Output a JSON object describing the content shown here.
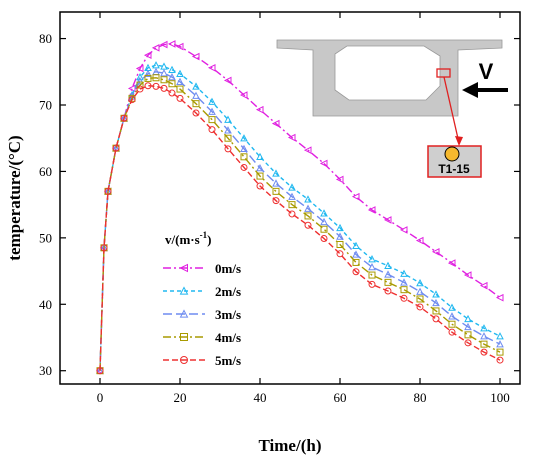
{
  "chart_data": {
    "type": "line",
    "xlabel": "Time/(h)",
    "ylabel": "temperature/(°C)",
    "xlim": [
      -10,
      105
    ],
    "ylim": [
      28,
      84
    ],
    "xticks": [
      0,
      20,
      40,
      60,
      80,
      100
    ],
    "yticks": [
      30,
      40,
      50,
      60,
      70,
      80
    ],
    "grid": false,
    "legend_title_parts": {
      "prefix": "v/(m·s",
      "sup": "-1",
      "suffix": ")"
    },
    "legend_placement": "center-left",
    "series": [
      {
        "name": "0m/s",
        "color": "#e020e0",
        "dash": "8,3,2,3",
        "marker": "triangle-left",
        "x": [
          0,
          1,
          2,
          4,
          6,
          8,
          10,
          12,
          14,
          16,
          18,
          20,
          24,
          28,
          32,
          36,
          40,
          44,
          48,
          52,
          56,
          60,
          64,
          68,
          72,
          76,
          80,
          84,
          88,
          92,
          96,
          100
        ],
        "y": [
          30,
          48.5,
          57,
          63.5,
          68,
          72.5,
          75.5,
          77.5,
          78.6,
          79.1,
          79.2,
          78.8,
          77.3,
          75.6,
          73.7,
          71.5,
          69.3,
          67.2,
          65.1,
          63.2,
          61.2,
          58.8,
          56.2,
          54.2,
          52.7,
          51.2,
          49.6,
          47.9,
          46.2,
          44.4,
          42.8,
          41
        ]
      },
      {
        "name": "2m/s",
        "color": "#20b8f0",
        "dash": "4,3",
        "marker": "triangle-up",
        "x": [
          0,
          1,
          2,
          4,
          6,
          8,
          10,
          12,
          14,
          16,
          18,
          20,
          24,
          28,
          32,
          36,
          40,
          44,
          48,
          52,
          56,
          60,
          64,
          68,
          72,
          76,
          80,
          84,
          88,
          92,
          96,
          100
        ],
        "y": [
          30,
          48.5,
          57,
          63.5,
          68,
          71.5,
          74.2,
          75.6,
          76,
          75.8,
          75.3,
          74.7,
          72.8,
          70.5,
          67.8,
          65,
          62.2,
          59.7,
          57.6,
          55.8,
          53.7,
          51.5,
          48.8,
          46.8,
          45.8,
          44.6,
          43.2,
          41.5,
          39.5,
          37.8,
          36.4,
          35.2
        ]
      },
      {
        "name": "3m/s",
        "color": "#6f8cf0",
        "dash": "9,4",
        "marker": "triangle-up",
        "x": [
          0,
          1,
          2,
          4,
          6,
          8,
          10,
          12,
          14,
          16,
          18,
          20,
          24,
          28,
          32,
          36,
          40,
          44,
          48,
          52,
          56,
          60,
          64,
          68,
          72,
          76,
          80,
          84,
          88,
          92,
          96,
          100
        ],
        "y": [
          30,
          48.5,
          57,
          63.5,
          68,
          71.3,
          73.6,
          74.7,
          75,
          74.8,
          74.2,
          73.5,
          71.4,
          69,
          66.2,
          63.4,
          60.5,
          58.2,
          56.2,
          54.4,
          52.4,
          50.2,
          47.5,
          45.6,
          44.5,
          43.3,
          41.9,
          40.2,
          38.2,
          36.6,
          35.2,
          34
        ]
      },
      {
        "name": "4m/s",
        "color": "#a89a00",
        "dash": "8,3,2,3",
        "marker": "square",
        "x": [
          0,
          1,
          2,
          4,
          6,
          8,
          10,
          12,
          14,
          16,
          18,
          20,
          24,
          28,
          32,
          36,
          40,
          44,
          48,
          52,
          56,
          60,
          64,
          68,
          72,
          76,
          80,
          84,
          88,
          92,
          96,
          100
        ],
        "y": [
          30,
          48.5,
          57,
          63.5,
          68,
          71,
          73,
          74,
          74.1,
          73.8,
          73.2,
          72.4,
          70.2,
          67.8,
          65,
          62.2,
          59.3,
          57,
          55,
          53.3,
          51.3,
          49,
          46.3,
          44.4,
          43.3,
          42.2,
          40.8,
          39,
          37,
          35.4,
          34,
          32.8
        ]
      },
      {
        "name": "5m/s",
        "color": "#ee3030",
        "dash": "6,3",
        "marker": "circle",
        "x": [
          0,
          1,
          2,
          4,
          6,
          8,
          10,
          12,
          14,
          16,
          18,
          20,
          24,
          28,
          32,
          36,
          40,
          44,
          48,
          52,
          56,
          60,
          64,
          68,
          72,
          76,
          80,
          84,
          88,
          92,
          96,
          100
        ],
        "y": [
          30,
          48.5,
          57,
          63.5,
          68,
          70.8,
          72.4,
          72.9,
          72.8,
          72.5,
          71.8,
          71,
          68.8,
          66.3,
          63.4,
          60.6,
          57.8,
          55.6,
          53.6,
          51.9,
          49.9,
          47.6,
          44.9,
          43,
          42,
          40.9,
          39.6,
          37.8,
          35.8,
          34.2,
          32.8,
          31.6
        ]
      }
    ]
  },
  "inset": {
    "velocity_label": "V",
    "gauge_label": "T1-15",
    "cross_section_color": "#c8c8c8",
    "highlight_color": "#e02020",
    "gauge_fill": "#f5b82e"
  }
}
